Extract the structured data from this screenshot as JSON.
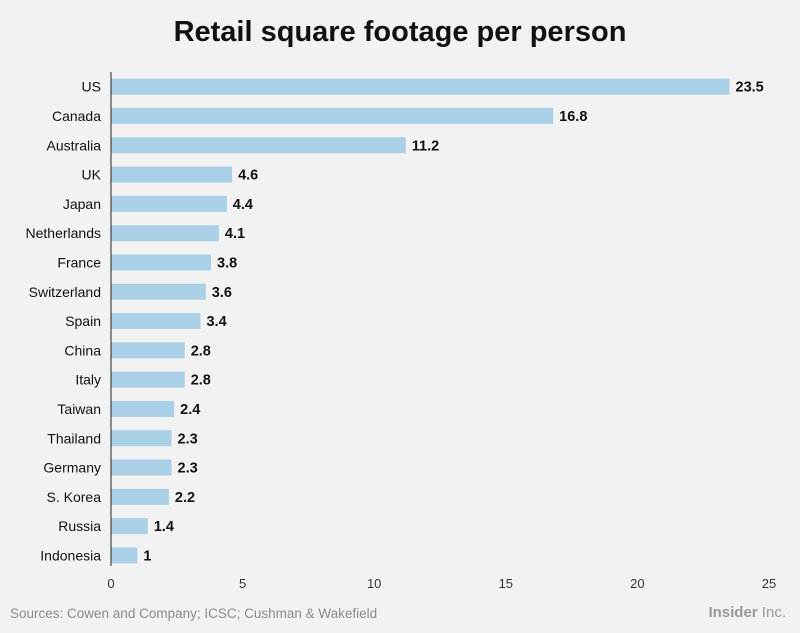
{
  "chart_data": {
    "type": "bar",
    "orientation": "horizontal",
    "title": "Retail square footage per person",
    "categories": [
      "US",
      "Canada",
      "Australia",
      "UK",
      "Japan",
      "Netherlands",
      "France",
      "Switzerland",
      "Spain",
      "China",
      "Italy",
      "Taiwan",
      "Thailand",
      "Germany",
      "S. Korea",
      "Russia",
      "Indonesia"
    ],
    "values": [
      23.5,
      16.8,
      11.2,
      4.6,
      4.4,
      4.1,
      3.8,
      3.6,
      3.4,
      2.8,
      2.8,
      2.4,
      2.3,
      2.3,
      2.2,
      1.4,
      1
    ],
    "value_labels": [
      "23.5",
      "16.8",
      "11.2",
      "4.6",
      "4.4",
      "4.1",
      "3.8",
      "3.6",
      "3.4",
      "2.8",
      "2.8",
      "2.4",
      "2.3",
      "2.3",
      "2.2",
      "1.4",
      "1"
    ],
    "xlim": [
      0,
      25
    ],
    "xticks": [
      0,
      5,
      10,
      15,
      20,
      25
    ],
    "xtick_labels": [
      "0",
      "5",
      "10",
      "15",
      "20",
      "25"
    ],
    "xlabel": "",
    "ylabel": "",
    "grid": false,
    "bar_color": "#a9d0e6"
  },
  "footer": {
    "source": "Sources: Cowen and Company; ICSC; Cushman & Wakefield",
    "brand_strong": "Insider",
    "brand_light": " Inc."
  },
  "colors": {
    "background": "#f2f2f2",
    "bar": "#a9d0e6",
    "axis": "#222222"
  }
}
